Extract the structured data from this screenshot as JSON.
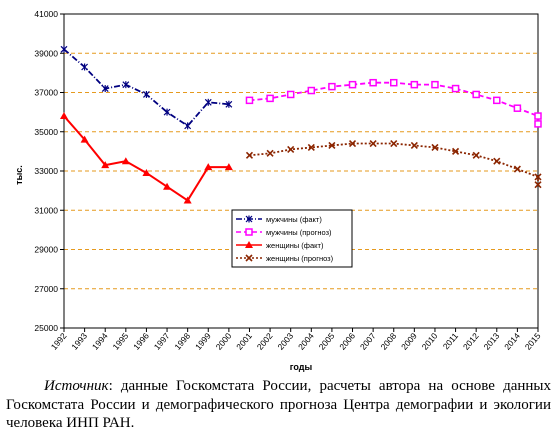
{
  "chart_data": {
    "type": "line",
    "title": "",
    "xlabel": "годы",
    "ylabel": "тыс.",
    "ylim": [
      25000,
      41000
    ],
    "yticks": [
      25000,
      27000,
      29000,
      31000,
      33000,
      35000,
      37000,
      39000,
      41000
    ],
    "grid": "horizontal-dashed",
    "legend_position": "center-left",
    "categories": [
      "1992",
      "1993",
      "1994",
      "1995",
      "1996",
      "1997",
      "1998",
      "1999",
      "2000",
      "2001",
      "2002",
      "2003",
      "2004",
      "2005",
      "2006",
      "2007",
      "2008",
      "2009",
      "2010",
      "2011",
      "2012",
      "2013",
      "2014",
      "2015"
    ],
    "series": [
      {
        "name": "мужчины (факт)",
        "color": "#000080",
        "style": "dash-dot",
        "marker": "star",
        "points": [
          [
            "1992",
            39200
          ],
          [
            "1993",
            38300
          ],
          [
            "1994",
            37200
          ],
          [
            "1995",
            37400
          ],
          [
            "1996",
            36900
          ],
          [
            "1997",
            36000
          ],
          [
            "1998",
            35300
          ],
          [
            "1999",
            36500
          ],
          [
            "2000",
            36400
          ]
        ]
      },
      {
        "name": "мужчины (прогноз)",
        "color": "#ff00ff",
        "style": "dashed",
        "marker": "hollow-square",
        "points": [
          [
            "2001",
            36600
          ],
          [
            "2002",
            36700
          ],
          [
            "2003",
            36900
          ],
          [
            "2004",
            37100
          ],
          [
            "2005",
            37300
          ],
          [
            "2006",
            37400
          ],
          [
            "2007",
            37500
          ],
          [
            "2008",
            37500
          ],
          [
            "2009",
            37400
          ],
          [
            "2010",
            37400
          ],
          [
            "2011",
            37200
          ],
          [
            "2012",
            36900
          ],
          [
            "2013",
            36600
          ],
          [
            "2014",
            36200
          ],
          [
            "2015",
            35800
          ],
          [
            "2016",
            35400
          ]
        ]
      },
      {
        "name": "женщины (факт)",
        "color": "#ff0000",
        "style": "solid",
        "marker": "triangle",
        "points": [
          [
            "1992",
            35800
          ],
          [
            "1993",
            34600
          ],
          [
            "1994",
            33300
          ],
          [
            "1995",
            33500
          ],
          [
            "1996",
            32900
          ],
          [
            "1997",
            32200
          ],
          [
            "1998",
            31500
          ],
          [
            "1999",
            33200
          ],
          [
            "2000",
            33200
          ]
        ]
      },
      {
        "name": "женщины (прогноз)",
        "color": "#8b2500",
        "style": "dotted",
        "marker": "x",
        "points": [
          [
            "2001",
            33800
          ],
          [
            "2002",
            33900
          ],
          [
            "2003",
            34100
          ],
          [
            "2004",
            34200
          ],
          [
            "2005",
            34300
          ],
          [
            "2006",
            34400
          ],
          [
            "2007",
            34400
          ],
          [
            "2008",
            34400
          ],
          [
            "2009",
            34300
          ],
          [
            "2010",
            34200
          ],
          [
            "2011",
            34000
          ],
          [
            "2012",
            33800
          ],
          [
            "2013",
            33500
          ],
          [
            "2014",
            33100
          ],
          [
            "2015",
            32700
          ],
          [
            "2016",
            32300
          ]
        ]
      }
    ]
  },
  "caption": {
    "source_label": "Источник",
    "text": ": данные Госкомстата России, расчеты автора на основе данных Госкомстата России и демографического прогноза Центра демографии и экологии человека ИНП РАН."
  }
}
